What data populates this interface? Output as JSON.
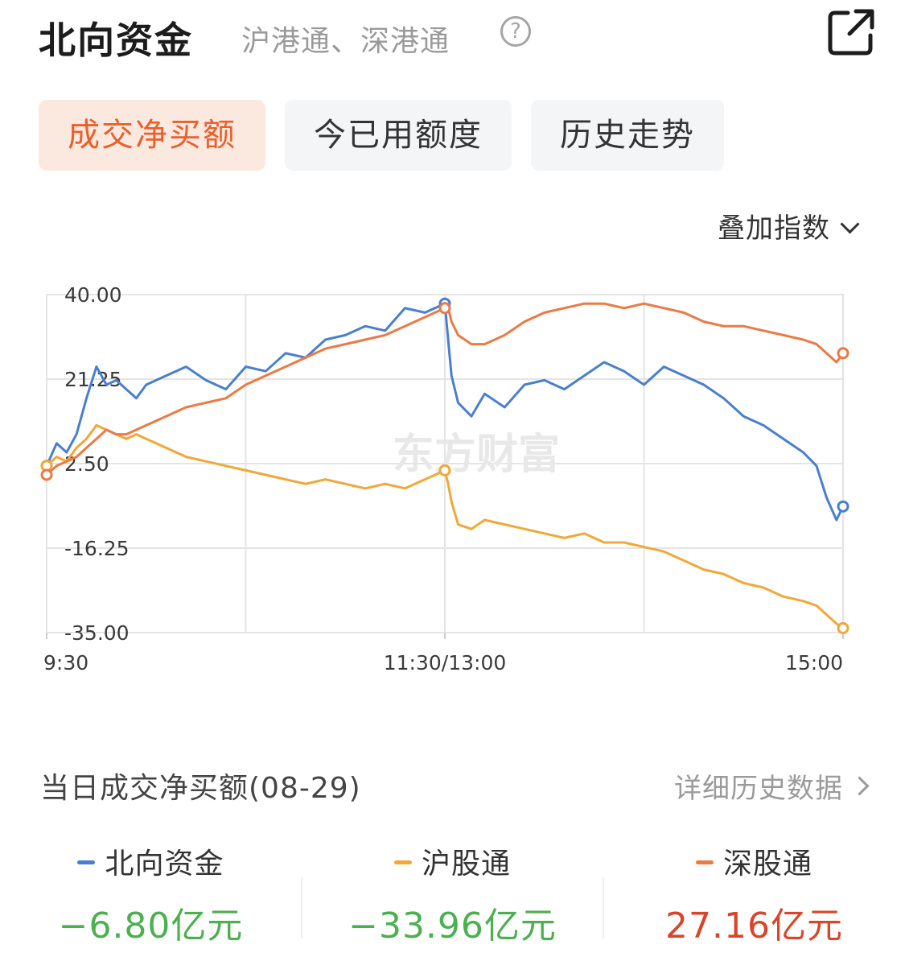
{
  "header": {
    "title": "北向资金",
    "subtitle": "沪港通、深港通",
    "help_icon": "question-circle-icon",
    "share_icon": "external-link-icon"
  },
  "tabs": [
    {
      "label": "成交净买额",
      "active": true
    },
    {
      "label": "今已用额度",
      "active": false
    },
    {
      "label": "历史走势",
      "active": false
    }
  ],
  "overlay_select": {
    "label": "叠加指数",
    "icon": "chevron-down-icon"
  },
  "watermark": "东方财富",
  "colors": {
    "north": "#4a7fcf",
    "sh": "#f0a83a",
    "sz": "#eb7a45",
    "accent": "#e9602b",
    "negative": "#4caf50",
    "positive": "#d9452b"
  },
  "chart_data": {
    "type": "line",
    "y_ticks": [
      "40.00",
      "21.25",
      "2.50",
      "-16.25",
      "-35.00"
    ],
    "ylim": [
      -35,
      40
    ],
    "x_tick_labels": [
      "9:30",
      "11:30/13:00",
      "15:00"
    ],
    "x_domain": [
      0,
      240
    ],
    "grid": true,
    "series": [
      {
        "name": "北向资金",
        "color": "#4a7fcf",
        "x": [
          0,
          3,
          6,
          9,
          12,
          15,
          18,
          21,
          24,
          27,
          30,
          36,
          42,
          48,
          54,
          60,
          66,
          72,
          78,
          84,
          90,
          96,
          102,
          108,
          114,
          120,
          121,
          122,
          124,
          128,
          132,
          138,
          144,
          150,
          156,
          162,
          168,
          174,
          180,
          186,
          192,
          198,
          204,
          210,
          216,
          222,
          228,
          232,
          235,
          238,
          240
        ],
        "y": [
          2,
          7,
          5,
          9,
          17,
          24,
          20,
          21,
          19,
          17,
          20,
          22,
          24,
          21,
          19,
          24,
          23,
          27,
          26,
          30,
          31,
          33,
          32,
          37,
          36,
          38,
          30,
          22,
          16,
          13,
          18,
          15,
          20,
          21,
          19,
          22,
          25,
          23,
          20,
          24,
          22,
          20,
          17,
          13,
          11,
          8,
          5,
          2,
          -5,
          -10,
          -7
        ]
      },
      {
        "name": "沪股通",
        "color": "#f0a83a",
        "x": [
          0,
          3,
          6,
          9,
          12,
          15,
          18,
          21,
          24,
          27,
          30,
          36,
          42,
          48,
          54,
          60,
          66,
          72,
          78,
          84,
          90,
          96,
          102,
          108,
          114,
          120,
          121,
          122,
          124,
          128,
          132,
          138,
          144,
          150,
          156,
          162,
          168,
          174,
          180,
          186,
          192,
          198,
          204,
          210,
          216,
          222,
          228,
          232,
          235,
          238,
          240
        ],
        "y": [
          2,
          4,
          3,
          6,
          8,
          11,
          10,
          9,
          8,
          9,
          8,
          6,
          4,
          3,
          2,
          1,
          0,
          -1,
          -2,
          -1,
          -2,
          -3,
          -2,
          -3,
          -1,
          1,
          -2,
          -6,
          -11,
          -12,
          -10,
          -11,
          -12,
          -13,
          -14,
          -13,
          -15,
          -15,
          -16,
          -17,
          -19,
          -21,
          -22,
          -24,
          -25,
          -27,
          -28,
          -29,
          -31,
          -33,
          -34
        ]
      },
      {
        "name": "深股通",
        "color": "#eb7a45",
        "x": [
          0,
          3,
          6,
          9,
          12,
          15,
          18,
          21,
          24,
          27,
          30,
          36,
          42,
          48,
          54,
          60,
          66,
          72,
          78,
          84,
          90,
          96,
          102,
          108,
          114,
          120,
          121,
          122,
          124,
          128,
          132,
          138,
          144,
          150,
          156,
          162,
          168,
          174,
          180,
          186,
          192,
          198,
          204,
          210,
          216,
          222,
          228,
          232,
          235,
          238,
          240
        ],
        "y": [
          0,
          2,
          3,
          4,
          6,
          8,
          10,
          9,
          9,
          10,
          11,
          13,
          15,
          16,
          17,
          20,
          22,
          24,
          26,
          28,
          29,
          30,
          31,
          33,
          35,
          37,
          37,
          34,
          31,
          29,
          29,
          31,
          34,
          36,
          37,
          38,
          38,
          37,
          38,
          37,
          36,
          34,
          33,
          33,
          32,
          31,
          30,
          29,
          27,
          25,
          27
        ]
      }
    ]
  },
  "summary": {
    "heading": "当日成交净买额(08-29)",
    "detail_link": "详细历史数据"
  },
  "stats": [
    {
      "label": "北向资金",
      "value": "−6.80亿元",
      "dash_color": "#4a7fcf",
      "value_color": "#4caf50"
    },
    {
      "label": "沪股通",
      "value": "−33.96亿元",
      "dash_color": "#f0a83a",
      "value_color": "#4caf50"
    },
    {
      "label": "深股通",
      "value": "27.16亿元",
      "dash_color": "#eb7a45",
      "value_color": "#d9452b"
    }
  ]
}
